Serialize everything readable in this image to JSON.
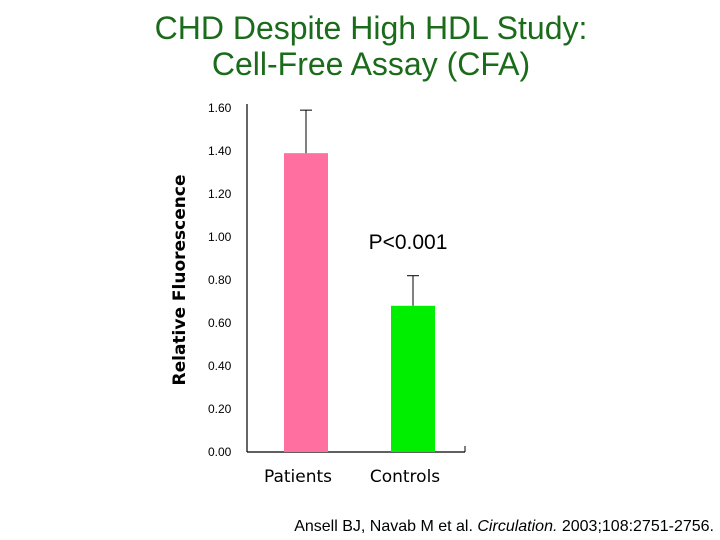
{
  "title": {
    "line1": "CHD Despite High HDL Study:",
    "line2": "Cell-Free Assay (CFA)"
  },
  "chart_data": {
    "type": "bar",
    "categories": [
      "Patients",
      "Controls"
    ],
    "values": [
      1.39,
      0.68
    ],
    "error_upper": [
      1.59,
      0.82
    ],
    "bar_colors": [
      "#ff6fa0",
      "#00ee00"
    ],
    "ylabel": "Relative Fluorescence",
    "xlabel": "",
    "ylim": [
      0,
      1.6
    ],
    "yticks": [
      "1.60",
      "1.40",
      "1.20",
      "1.00",
      "0.80",
      "0.60",
      "0.40",
      "0.20",
      "0.00"
    ],
    "annotation": "P<0.001",
    "grid": false
  },
  "citation": {
    "authors": "Ansell BJ, Navab M et al. ",
    "journal": "Circulation.",
    "details": " 2003;108:2751-2756."
  }
}
